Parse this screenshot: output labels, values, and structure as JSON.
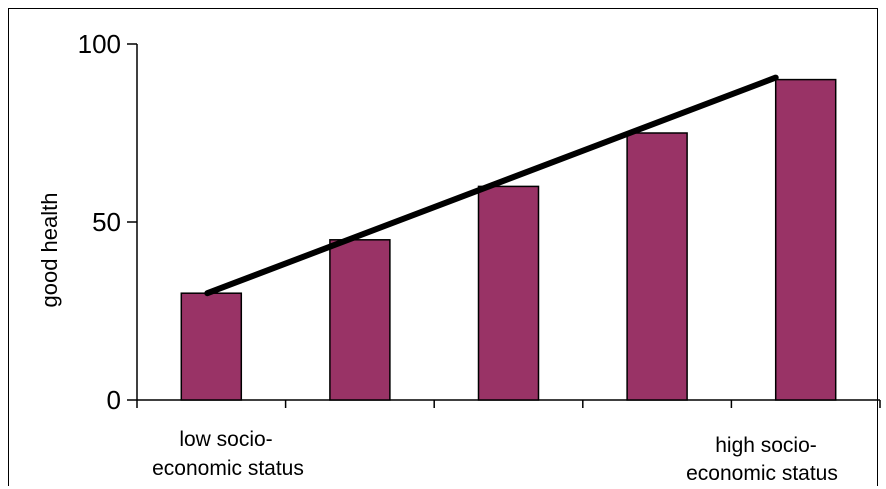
{
  "chart_data": {
    "type": "bar",
    "title": "",
    "xlabel": "",
    "ylabel": "good health",
    "ylim": [
      0,
      100
    ],
    "yticks": [
      0,
      50,
      100
    ],
    "categories": [
      "",
      "",
      "",
      "",
      ""
    ],
    "values": [
      30,
      45,
      60,
      75,
      90
    ],
    "grid": false,
    "legend": "none",
    "bar_color": "#993366",
    "trendline": {
      "start": 30,
      "end": 90,
      "color": "#000000"
    },
    "annotations": {
      "low": [
        "low socio-",
        "economic status"
      ],
      "high": [
        "high socio-",
        "economic status"
      ]
    }
  }
}
